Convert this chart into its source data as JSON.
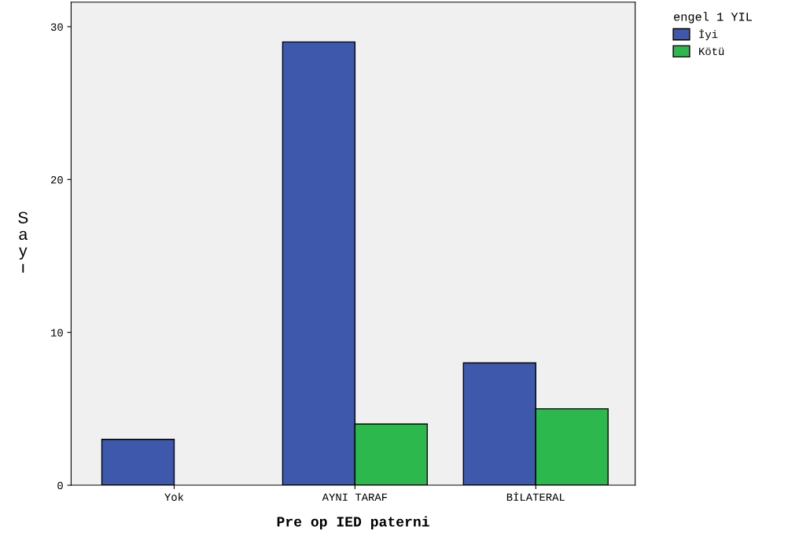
{
  "chart_data": {
    "type": "bar",
    "xlabel": "Pre op IED paterni",
    "ylabel": "Sayı",
    "legend_title": "engel 1 YIL",
    "categories": [
      "Yok",
      "AYNI TARAF",
      "BİLATERAL"
    ],
    "series": [
      {
        "name": "İyi",
        "color": "#3e58ac",
        "values": [
          3,
          29,
          8
        ]
      },
      {
        "name": "Kötü",
        "color": "#2db84d",
        "values": [
          null,
          4,
          5
        ]
      }
    ],
    "ylim": [
      0,
      31.6
    ],
    "yticks": [
      0,
      10,
      20,
      30
    ],
    "grid": false,
    "legend": "top right"
  }
}
